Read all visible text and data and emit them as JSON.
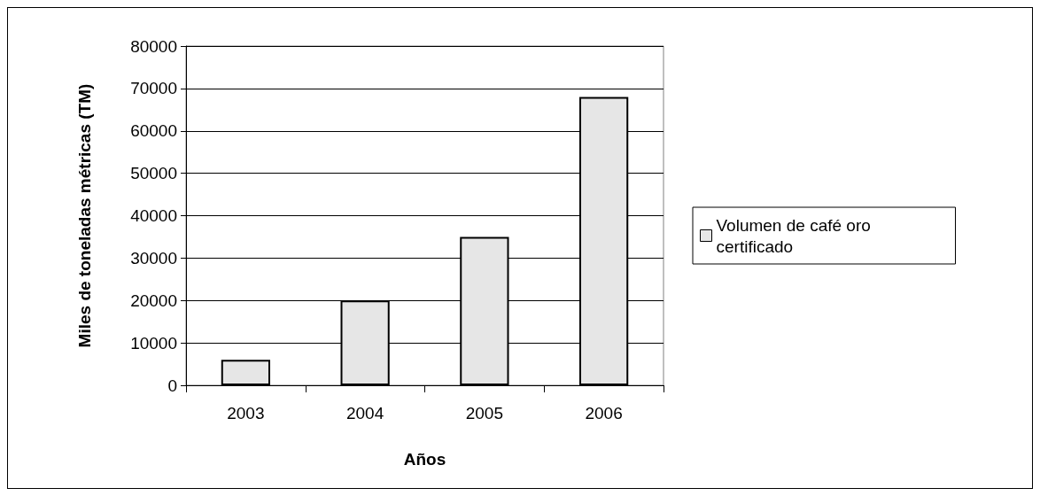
{
  "chart_data": {
    "type": "bar",
    "xlabel": "Años",
    "ylabel": "Miles de toneladas métricas (TM)",
    "categories": [
      "2003",
      "2004",
      "2005",
      "2006"
    ],
    "series": [
      {
        "name": "Volumen de café oro certificado",
        "color": "#e6e6e6",
        "values": [
          6000,
          20000,
          35000,
          68000
        ]
      }
    ],
    "ylim": [
      0,
      80000
    ],
    "yticks": [
      0,
      10000,
      20000,
      30000,
      40000,
      50000,
      60000,
      70000,
      80000
    ],
    "grid": "y",
    "legend": "right"
  }
}
